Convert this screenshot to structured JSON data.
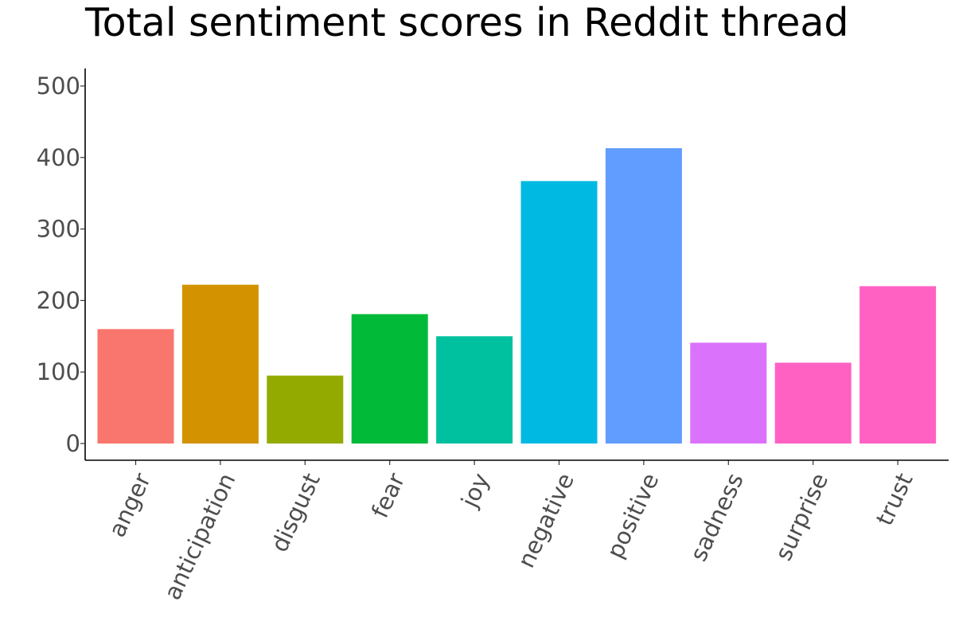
{
  "chart_data": {
    "type": "bar",
    "title": "Total sentiment scores in Reddit thread",
    "xlabel": "",
    "ylabel": "",
    "categories": [
      "anger",
      "anticipation",
      "disgust",
      "fear",
      "joy",
      "negative",
      "positive",
      "sadness",
      "surprise",
      "trust"
    ],
    "values": [
      160,
      222,
      95,
      181,
      150,
      367,
      413,
      141,
      113,
      220
    ],
    "colors": [
      "#F8766D",
      "#D39200",
      "#93AA00",
      "#00BA38",
      "#00C19F",
      "#00B9E3",
      "#619CFF",
      "#DB72FB",
      "#FF61C3",
      "#FF61C3"
    ],
    "yticks": [
      "0",
      "100",
      "200",
      "300",
      "400",
      "500"
    ],
    "ylim": [
      0,
      500
    ],
    "grid": false,
    "legend": "none"
  }
}
